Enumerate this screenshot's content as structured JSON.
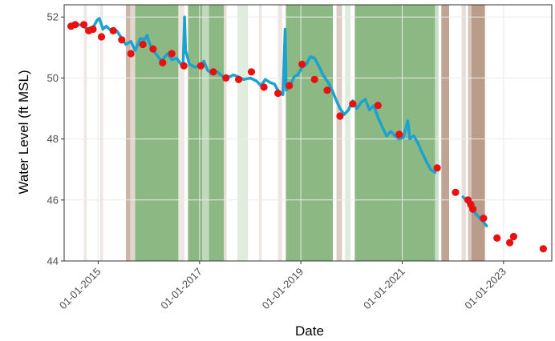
{
  "chart_data": {
    "type": "line",
    "title": "",
    "xlabel": "Date",
    "ylabel": "Water Level (ft MSL)",
    "x_axis_type": "date",
    "xlim": [
      "2014-05-01",
      "2023-12-15"
    ],
    "ylim": [
      44,
      52.4
    ],
    "x_ticks": [
      {
        "date": "2015-01-01",
        "label": "01-01-2015"
      },
      {
        "date": "2017-01-01",
        "label": "01-01-2017"
      },
      {
        "date": "2019-01-01",
        "label": "01-01-2019"
      },
      {
        "date": "2021-01-01",
        "label": "01-01-2021"
      },
      {
        "date": "2023-01-01",
        "label": "01-01-2023"
      }
    ],
    "y_ticks": [
      {
        "value": 44,
        "label": "44"
      },
      {
        "value": 46,
        "label": "46"
      },
      {
        "value": 48,
        "label": "48"
      },
      {
        "value": 50,
        "label": "50"
      },
      {
        "value": 52,
        "label": "52"
      }
    ],
    "grid": true,
    "legend": "none",
    "colors": {
      "continuous": "#1aa3cf",
      "discrete": "#e81010",
      "green_band": "#2e7d1f",
      "brown_band": "#8b5a3c",
      "grid": "#ebebeb",
      "panel_border": "#333333"
    },
    "shaded_periods": [
      {
        "start": "2014-09-20",
        "end": "2014-10-10",
        "color": "brown",
        "opacity": 0.15
      },
      {
        "start": "2015-01-15",
        "end": "2015-02-05",
        "color": "brown",
        "opacity": 0.15
      },
      {
        "start": "2015-07-20",
        "end": "2015-08-20",
        "color": "brown",
        "opacity": 0.45
      },
      {
        "start": "2015-08-20",
        "end": "2015-09-25",
        "color": "brown",
        "opacity": 0.25
      },
      {
        "start": "2015-09-25",
        "end": "2016-08-01",
        "color": "green",
        "opacity": 0.55
      },
      {
        "start": "2016-08-01",
        "end": "2016-09-15",
        "color": "brown",
        "opacity": 0.15
      },
      {
        "start": "2016-10-10",
        "end": "2017-01-20",
        "color": "green",
        "opacity": 0.55
      },
      {
        "start": "2017-01-20",
        "end": "2017-03-10",
        "color": "green",
        "opacity": 0.3
      },
      {
        "start": "2017-03-10",
        "end": "2017-06-25",
        "color": "green",
        "opacity": 0.55
      },
      {
        "start": "2017-06-25",
        "end": "2017-07-15",
        "color": "brown",
        "opacity": 0.2
      },
      {
        "start": "2017-10-01",
        "end": "2017-12-15",
        "color": "green",
        "opacity": 0.15
      },
      {
        "start": "2018-03-05",
        "end": "2018-03-25",
        "color": "brown",
        "opacity": 0.15
      },
      {
        "start": "2018-07-20",
        "end": "2018-08-20",
        "color": "brown",
        "opacity": 0.15
      },
      {
        "start": "2018-09-15",
        "end": "2019-08-20",
        "color": "green",
        "opacity": 0.55
      },
      {
        "start": "2019-09-15",
        "end": "2019-10-25",
        "color": "brown",
        "opacity": 0.3
      },
      {
        "start": "2019-11-15",
        "end": "2019-12-25",
        "color": "green",
        "opacity": 0.15
      },
      {
        "start": "2020-01-25",
        "end": "2021-08-25",
        "color": "green",
        "opacity": 0.55
      },
      {
        "start": "2021-08-25",
        "end": "2021-09-20",
        "color": "green",
        "opacity": 0.25
      },
      {
        "start": "2021-10-10",
        "end": "2021-12-05",
        "color": "brown",
        "opacity": 0.55
      },
      {
        "start": "2022-03-05",
        "end": "2022-04-05",
        "color": "brown",
        "opacity": 0.2
      },
      {
        "start": "2022-04-20",
        "end": "2022-05-15",
        "color": "brown",
        "opacity": 0.35
      },
      {
        "start": "2022-05-15",
        "end": "2022-08-20",
        "color": "brown",
        "opacity": 0.6
      }
    ],
    "series": [
      {
        "mark": "line",
        "color": "#1aa3cf",
        "points": [
          [
            "2014-06-10",
            51.7
          ],
          [
            "2014-09-01",
            51.75
          ],
          [
            "2014-10-15",
            51.6
          ],
          [
            "2014-12-01",
            51.7
          ],
          [
            "2014-12-25",
            51.9
          ],
          [
            "2015-01-10",
            51.95
          ],
          [
            "2015-02-05",
            51.6
          ],
          [
            "2015-03-01",
            51.7
          ],
          [
            "2015-04-15",
            51.5
          ],
          [
            "2015-05-15",
            51.55
          ],
          [
            "2015-06-20",
            51.3
          ],
          [
            "2015-07-20",
            51.1
          ],
          [
            "2015-08-25",
            51.2
          ],
          [
            "2015-09-25",
            50.9
          ],
          [
            "2015-11-01",
            51.3
          ],
          [
            "2015-12-01",
            51.25
          ],
          [
            "2015-12-20",
            51.4
          ],
          [
            "2016-01-05",
            51.15
          ],
          [
            "2016-02-01",
            50.9
          ],
          [
            "2016-03-01",
            50.75
          ],
          [
            "2016-04-01",
            50.55
          ],
          [
            "2016-05-15",
            50.8
          ],
          [
            "2016-06-15",
            50.6
          ],
          [
            "2016-07-20",
            50.65
          ],
          [
            "2016-08-20",
            50.45
          ],
          [
            "2016-09-05",
            50.5
          ],
          [
            "2016-09-15",
            52.0
          ],
          [
            "2016-09-22",
            50.9
          ],
          [
            "2016-10-20",
            50.45
          ],
          [
            "2016-12-01",
            50.35
          ],
          [
            "2017-01-15",
            50.45
          ],
          [
            "2017-02-01",
            50.55
          ],
          [
            "2017-03-01",
            50.25
          ],
          [
            "2017-04-01",
            50.15
          ],
          [
            "2017-05-10",
            50.2
          ],
          [
            "2017-06-15",
            50.05
          ],
          [
            "2017-07-20",
            50.0
          ],
          [
            "2017-09-01",
            50.1
          ],
          [
            "2017-10-01",
            50.05
          ],
          [
            "2017-11-15",
            49.95
          ],
          [
            "2018-01-01",
            50.0
          ],
          [
            "2018-02-15",
            49.9
          ],
          [
            "2018-03-20",
            49.75
          ],
          [
            "2018-04-20",
            49.95
          ],
          [
            "2018-05-25",
            49.85
          ],
          [
            "2018-06-25",
            49.8
          ],
          [
            "2018-07-25",
            49.55
          ],
          [
            "2018-08-25",
            49.45
          ],
          [
            "2018-09-10",
            51.6
          ],
          [
            "2018-09-18",
            49.6
          ],
          [
            "2018-10-20",
            49.8
          ],
          [
            "2018-11-15",
            50.05
          ],
          [
            "2018-12-10",
            50.1
          ],
          [
            "2019-01-10",
            50.35
          ],
          [
            "2019-02-10",
            50.45
          ],
          [
            "2019-03-10",
            50.7
          ],
          [
            "2019-04-10",
            50.65
          ],
          [
            "2019-05-10",
            50.4
          ],
          [
            "2019-06-10",
            50.1
          ],
          [
            "2019-07-10",
            49.9
          ],
          [
            "2019-08-10",
            49.65
          ],
          [
            "2019-09-10",
            49.3
          ],
          [
            "2019-10-10",
            49.0
          ],
          [
            "2019-11-10",
            48.8
          ],
          [
            "2019-12-10",
            48.95
          ],
          [
            "2020-01-10",
            49.25
          ],
          [
            "2020-02-10",
            49.0
          ],
          [
            "2020-03-10",
            49.2
          ],
          [
            "2020-04-10",
            49.3
          ],
          [
            "2020-05-10",
            48.95
          ],
          [
            "2020-06-10",
            49.1
          ],
          [
            "2020-07-10",
            48.7
          ],
          [
            "2020-08-10",
            48.4
          ],
          [
            "2020-09-10",
            48.1
          ],
          [
            "2020-10-10",
            48.25
          ],
          [
            "2020-11-10",
            48.1
          ],
          [
            "2020-12-10",
            48.0
          ],
          [
            "2021-01-10",
            48.05
          ],
          [
            "2021-02-10",
            48.6
          ],
          [
            "2021-02-25",
            48.0
          ],
          [
            "2021-03-25",
            48.1
          ],
          [
            "2021-04-25",
            47.85
          ],
          [
            "2021-05-25",
            47.55
          ],
          [
            "2021-06-25",
            47.25
          ],
          [
            "2021-07-25",
            47.0
          ],
          [
            "2021-08-25",
            46.9
          ]
        ]
      },
      {
        "mark": "line",
        "color": "#1aa3cf",
        "points": [
          [
            "2022-03-15",
            46.1
          ],
          [
            "2022-04-15",
            45.95
          ],
          [
            "2022-05-15",
            45.7
          ],
          [
            "2022-06-15",
            45.55
          ],
          [
            "2022-07-15",
            45.4
          ],
          [
            "2022-08-15",
            45.25
          ],
          [
            "2022-09-01",
            45.15
          ]
        ]
      },
      {
        "mark": "point",
        "color": "#e81010",
        "points": [
          [
            "2014-06-20",
            51.7
          ],
          [
            "2014-07-20",
            51.75
          ],
          [
            "2014-09-20",
            51.75
          ],
          [
            "2014-10-25",
            51.55
          ],
          [
            "2014-11-25",
            51.6
          ],
          [
            "2015-01-25",
            51.35
          ],
          [
            "2015-04-20",
            51.55
          ],
          [
            "2015-06-20",
            51.25
          ],
          [
            "2015-08-25",
            50.8
          ],
          [
            "2015-11-20",
            51.1
          ],
          [
            "2016-02-01",
            50.95
          ],
          [
            "2016-04-10",
            50.5
          ],
          [
            "2016-06-15",
            50.8
          ],
          [
            "2016-09-10",
            50.4
          ],
          [
            "2017-01-10",
            50.4
          ],
          [
            "2017-04-10",
            50.2
          ],
          [
            "2017-07-10",
            50.0
          ],
          [
            "2017-10-10",
            49.95
          ],
          [
            "2018-01-10",
            50.2
          ],
          [
            "2018-04-10",
            49.7
          ],
          [
            "2018-07-20",
            49.5
          ],
          [
            "2018-10-10",
            49.75
          ],
          [
            "2019-01-10",
            50.45
          ],
          [
            "2019-04-10",
            49.95
          ],
          [
            "2019-07-10",
            49.6
          ],
          [
            "2019-10-10",
            48.75
          ],
          [
            "2020-01-10",
            49.15
          ],
          [
            "2020-07-10",
            49.1
          ],
          [
            "2020-12-10",
            48.15
          ],
          [
            "2021-09-10",
            47.05
          ],
          [
            "2022-01-20",
            46.25
          ],
          [
            "2022-04-20",
            46.0
          ],
          [
            "2022-05-10",
            45.85
          ],
          [
            "2022-05-25",
            45.7
          ],
          [
            "2022-08-10",
            45.4
          ],
          [
            "2022-11-15",
            44.75
          ],
          [
            "2023-02-15",
            44.6
          ],
          [
            "2023-03-15",
            44.8
          ],
          [
            "2023-10-15",
            44.4
          ]
        ]
      }
    ]
  }
}
